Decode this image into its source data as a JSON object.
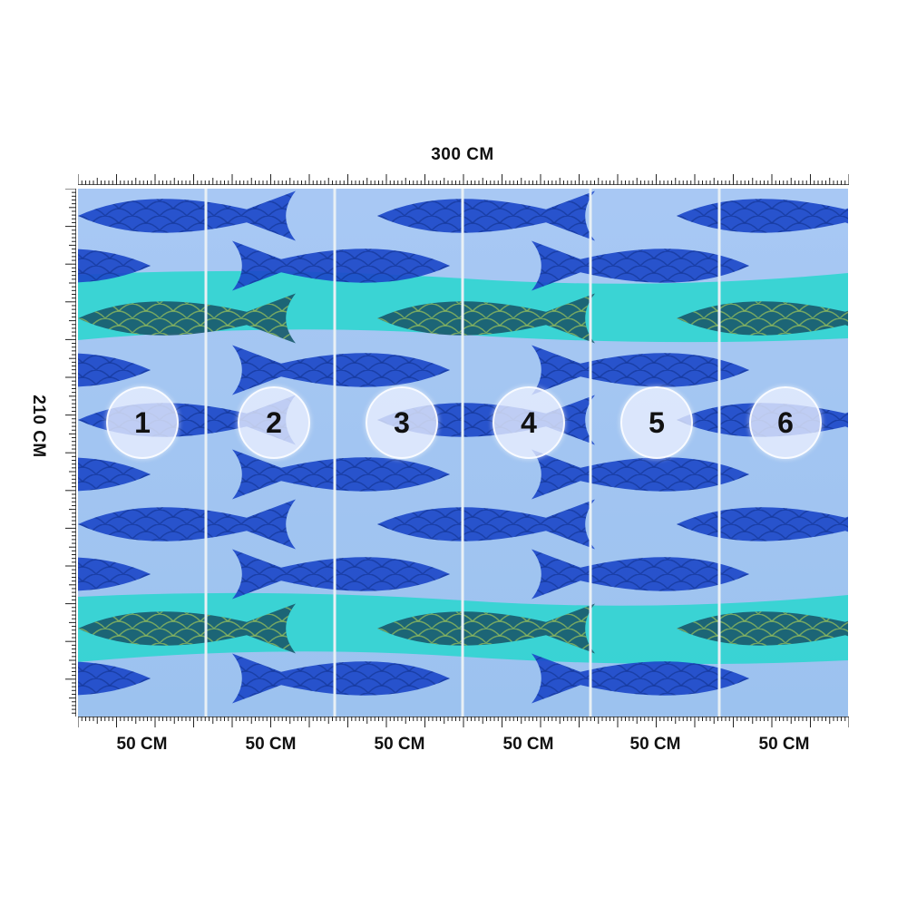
{
  "dimensions": {
    "width_label": "300 CM",
    "height_label": "210 CM"
  },
  "panels": [
    {
      "number": "1",
      "width_label": "50 CM"
    },
    {
      "number": "2",
      "width_label": "50 CM"
    },
    {
      "number": "3",
      "width_label": "50 CM"
    },
    {
      "number": "4",
      "width_label": "50 CM"
    },
    {
      "number": "5",
      "width_label": "50 CM"
    },
    {
      "number": "6",
      "width_label": "50 CM"
    }
  ],
  "colors": {
    "light_blue": "#9fc6f0",
    "aqua": "#2fd5d0",
    "fish_blue": "#1d49c9",
    "fish_dark": "#1a5b6e",
    "divider": "#e8f0f5",
    "ruler": "#222222"
  }
}
